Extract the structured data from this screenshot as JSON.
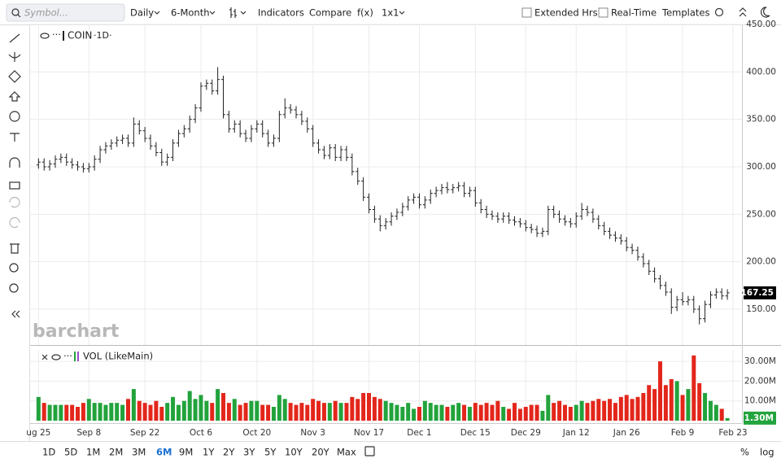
{
  "toolbar": {
    "symbol_placeholder": "Symbol...",
    "interval": "Daily",
    "range": "6-Month",
    "indicators": "Indicators",
    "compare": "Compare",
    "fx": "f(x)",
    "layout": "1x1",
    "extended_hours": "Extended Hrs",
    "real_time": "Real-Time",
    "templates": "Templates"
  },
  "watermark": "barchart",
  "chart_data": [
    {
      "type": "ohlc",
      "symbol": "COIN",
      "interval_label": "·1D·",
      "color": "#222222",
      "grid": true,
      "open": [
        302,
        305,
        300,
        303,
        308,
        310,
        305,
        302,
        300,
        298,
        300,
        308,
        318,
        322,
        325,
        328,
        330,
        325,
        345,
        338,
        330,
        322,
        315,
        305,
        310,
        325,
        335,
        340,
        350,
        362,
        385,
        388,
        380,
        392,
        355,
        340,
        345,
        335,
        330,
        340,
        345,
        335,
        325,
        330,
        355,
        362,
        360,
        355,
        348,
        340,
        325,
        318,
        312,
        320,
        310,
        318,
        310,
        295,
        285,
        268,
        255,
        245,
        238,
        242,
        248,
        252,
        258,
        265,
        268,
        260,
        265,
        272,
        275,
        278,
        276,
        278,
        280,
        272,
        275,
        262,
        255,
        250,
        248,
        245,
        248,
        244,
        242,
        240,
        236,
        234,
        230,
        232,
        255,
        250,
        245,
        242,
        240,
        248,
        255,
        252,
        245,
        238,
        232,
        228,
        225,
        222,
        215,
        212,
        205,
        198,
        190,
        182,
        175,
        168,
        152,
        160,
        158,
        160,
        150,
        140,
        155,
        165,
        168,
        164
      ],
      "high": [
        309,
        309,
        307,
        312,
        314,
        314,
        309,
        306,
        304,
        304,
        312,
        322,
        326,
        329,
        332,
        334,
        334,
        352,
        349,
        342,
        334,
        326,
        319,
        314,
        329,
        339,
        344,
        354,
        366,
        389,
        392,
        392,
        405,
        396,
        359,
        349,
        349,
        339,
        344,
        349,
        349,
        339,
        334,
        359,
        372,
        366,
        364,
        359,
        352,
        344,
        329,
        322,
        324,
        324,
        322,
        322,
        314,
        299,
        289,
        272,
        259,
        249,
        246,
        252,
        256,
        262,
        269,
        272,
        272,
        269,
        276,
        279,
        282,
        284,
        282,
        284,
        284,
        279,
        279,
        266,
        259,
        254,
        252,
        252,
        252,
        248,
        246,
        244,
        240,
        238,
        236,
        259,
        259,
        254,
        249,
        246,
        252,
        262,
        259,
        256,
        249,
        242,
        236,
        232,
        229,
        226,
        219,
        216,
        209,
        202,
        194,
        186,
        179,
        172,
        164,
        168,
        164,
        164,
        154,
        159,
        169,
        172,
        172,
        171
      ],
      "low": [
        298,
        296,
        296,
        299,
        304,
        301,
        298,
        296,
        294,
        294,
        296,
        304,
        314,
        318,
        321,
        324,
        321,
        321,
        334,
        326,
        318,
        311,
        301,
        301,
        306,
        321,
        331,
        336,
        346,
        358,
        381,
        376,
        376,
        351,
        336,
        336,
        331,
        326,
        326,
        336,
        331,
        321,
        321,
        326,
        351,
        356,
        351,
        344,
        336,
        321,
        314,
        308,
        308,
        306,
        306,
        306,
        291,
        281,
        264,
        251,
        241,
        232,
        234,
        238,
        244,
        248,
        254,
        261,
        256,
        256,
        261,
        268,
        271,
        272,
        272,
        274,
        268,
        268,
        258,
        251,
        246,
        244,
        241,
        241,
        240,
        238,
        236,
        232,
        230,
        226,
        226,
        228,
        246,
        241,
        238,
        236,
        236,
        244,
        248,
        241,
        234,
        228,
        224,
        221,
        218,
        211,
        208,
        201,
        194,
        186,
        178,
        171,
        164,
        145,
        148,
        154,
        154,
        146,
        134,
        136,
        151,
        161,
        160,
        160
      ],
      "close": [
        305,
        300,
        303,
        308,
        310,
        305,
        302,
        300,
        298,
        300,
        308,
        318,
        322,
        325,
        328,
        330,
        325,
        345,
        338,
        330,
        322,
        315,
        305,
        310,
        325,
        335,
        340,
        350,
        362,
        385,
        388,
        380,
        392,
        355,
        340,
        345,
        335,
        330,
        340,
        345,
        335,
        325,
        330,
        355,
        362,
        360,
        355,
        348,
        340,
        325,
        318,
        312,
        320,
        310,
        318,
        310,
        295,
        285,
        268,
        255,
        245,
        238,
        242,
        248,
        252,
        258,
        265,
        268,
        260,
        265,
        272,
        275,
        278,
        276,
        278,
        280,
        272,
        275,
        262,
        255,
        250,
        248,
        245,
        248,
        244,
        242,
        240,
        236,
        234,
        230,
        232,
        255,
        250,
        245,
        242,
        240,
        248,
        255,
        252,
        245,
        238,
        232,
        228,
        225,
        222,
        215,
        212,
        205,
        198,
        190,
        182,
        175,
        168,
        152,
        160,
        158,
        160,
        150,
        140,
        155,
        165,
        168,
        164,
        167.25
      ],
      "ylim": [
        114,
        450
      ],
      "yticks": [
        {
          "value": 150,
          "label": "150.00"
        },
        {
          "value": 200,
          "label": "200.00"
        },
        {
          "value": 250,
          "label": "250.00"
        },
        {
          "value": 300,
          "label": "300.00"
        },
        {
          "value": 350,
          "label": "350.00"
        },
        {
          "value": 400,
          "label": "400.00"
        },
        {
          "value": 450,
          "label": "450.00"
        }
      ],
      "xlim": [
        -1.5,
        125.6
      ],
      "xticks": [
        {
          "value": 0,
          "label": "ug 25"
        },
        {
          "value": 9,
          "label": "Sep 8"
        },
        {
          "value": 19,
          "label": "Sep 22"
        },
        {
          "value": 29,
          "label": "Oct 6"
        },
        {
          "value": 39,
          "label": "Oct 20"
        },
        {
          "value": 49,
          "label": "Nov 3"
        },
        {
          "value": 59,
          "label": "Nov 17"
        },
        {
          "value": 68,
          "label": "Dec 1"
        },
        {
          "value": 78,
          "label": "Dec 15"
        },
        {
          "value": 87,
          "label": "Dec 29"
        },
        {
          "value": 96,
          "label": "Jan 12"
        },
        {
          "value": 105,
          "label": "Jan 26"
        },
        {
          "value": 115,
          "label": "Feb 9"
        },
        {
          "value": 124,
          "label": "Feb 23"
        }
      ]
    },
    {
      "type": "bar",
      "title": "VOL (LikeMain)",
      "up_color": "#22a33c",
      "down_color": "#e3261b",
      "grid": true,
      "last_label": "1.30M",
      "values": [
        12,
        9,
        8,
        8,
        8,
        8,
        8,
        7,
        9,
        11,
        9,
        9,
        8,
        9,
        9,
        8,
        11,
        16,
        10,
        9,
        8,
        10,
        7,
        9,
        12,
        8,
        10,
        15,
        11,
        13,
        10,
        9,
        16,
        14,
        9,
        11,
        8,
        9,
        10,
        10,
        8,
        8,
        7,
        13,
        11,
        9,
        8,
        9,
        8,
        11,
        10,
        9,
        9,
        10,
        9,
        9,
        12,
        11,
        14,
        14,
        12,
        11,
        10,
        9,
        8,
        7,
        9,
        6,
        7,
        10,
        9,
        8,
        8,
        7,
        8,
        9,
        8,
        7,
        9,
        8,
        9,
        8,
        10,
        7,
        6,
        9,
        6,
        7,
        8,
        8,
        5,
        13,
        9,
        10,
        8,
        7,
        8,
        10,
        9,
        10,
        11,
        10,
        11,
        9,
        12,
        13,
        11,
        12,
        14,
        18,
        16,
        30,
        18,
        21,
        20,
        13,
        16,
        33,
        19,
        14,
        10,
        8,
        6,
        1.3
      ],
      "ylim": [
        0,
        35.8
      ],
      "yticks": [
        {
          "value": 10,
          "label": "10.00M"
        },
        {
          "value": 20,
          "label": "20.00M"
        },
        {
          "value": 30,
          "label": "30.00M"
        }
      ]
    }
  ],
  "range_buttons": [
    "1D",
    "5D",
    "1M",
    "2M",
    "3M",
    "6M",
    "9M",
    "1Y",
    "2Y",
    "3Y",
    "5Y",
    "10Y",
    "20Y",
    "Max"
  ],
  "active_range_index": 5,
  "axis_toggles": [
    "%",
    "log"
  ]
}
